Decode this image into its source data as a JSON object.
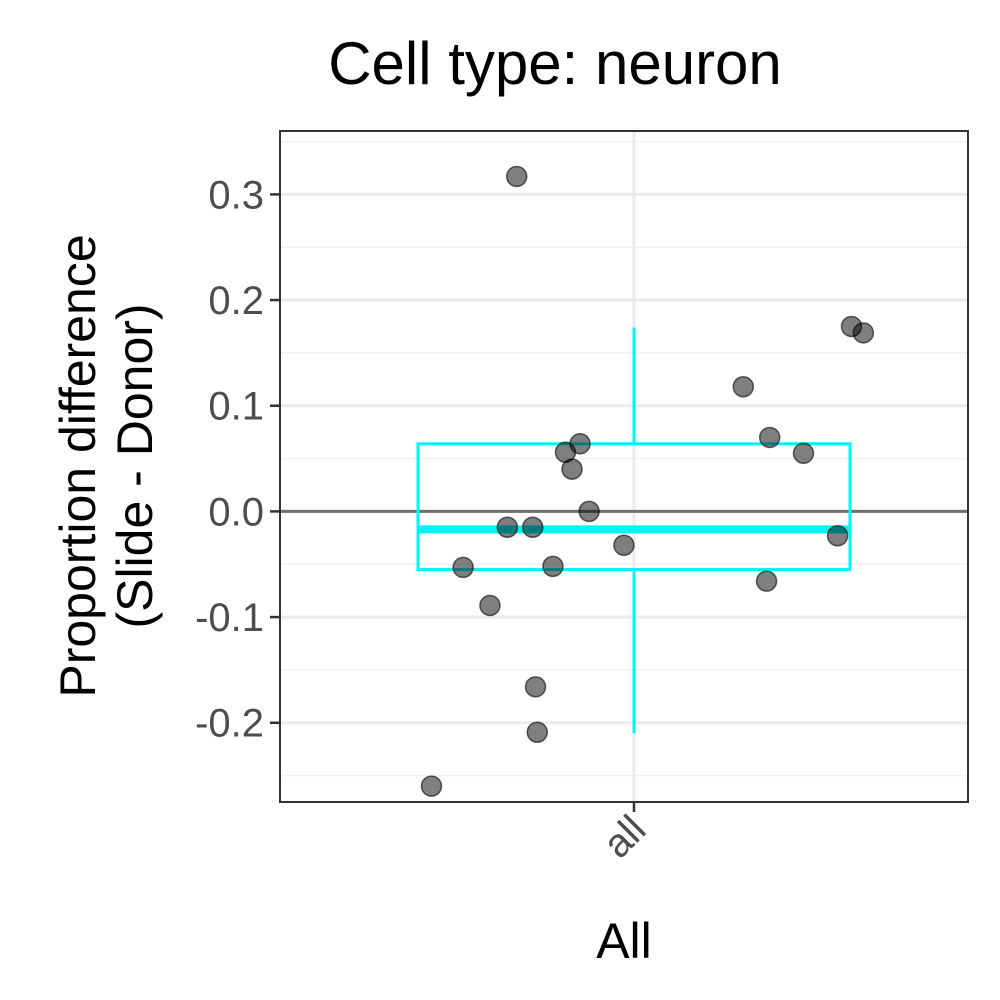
{
  "chart_data": {
    "type": "box",
    "title": "Cell type: neuron",
    "xlabel": "All",
    "ylabel_lines": [
      "Proportion difference",
      "(Slide - Donor)"
    ],
    "categories": [
      "all"
    ],
    "ylim": [
      -0.275,
      0.36
    ],
    "yticks": [
      -0.2,
      -0.1,
      0.0,
      0.1,
      0.2,
      0.3
    ],
    "ytick_labels": [
      "-0.2",
      "-0.1",
      "0.0",
      "0.1",
      "0.2",
      "0.3"
    ],
    "reference_line_y": 0.0,
    "grid": true,
    "box": {
      "category": "all",
      "lower_whisker": -0.21,
      "q1": -0.055,
      "median": -0.017,
      "q3": 0.064,
      "upper_whisker": 0.174,
      "color": "#00f5f5"
    },
    "points": [
      {
        "x_offset": -0.337,
        "y": 0.317
      },
      {
        "x_offset": -0.155,
        "y": 0.064
      },
      {
        "x_offset": -0.197,
        "y": 0.056
      },
      {
        "x_offset": -0.178,
        "y": 0.04
      },
      {
        "x_offset": -0.129,
        "y": 0.0
      },
      {
        "x_offset": -0.364,
        "y": -0.015
      },
      {
        "x_offset": -0.291,
        "y": -0.015
      },
      {
        "x_offset": -0.029,
        "y": -0.032
      },
      {
        "x_offset": -0.491,
        "y": -0.053
      },
      {
        "x_offset": -0.233,
        "y": -0.052
      },
      {
        "x_offset": -0.414,
        "y": -0.089
      },
      {
        "x_offset": -0.283,
        "y": -0.166
      },
      {
        "x_offset": -0.278,
        "y": -0.209
      },
      {
        "x_offset": -0.582,
        "y": -0.26
      },
      {
        "x_offset": 0.314,
        "y": 0.118
      },
      {
        "x_offset": 0.39,
        "y": 0.07
      },
      {
        "x_offset": 0.487,
        "y": 0.055
      },
      {
        "x_offset": 0.381,
        "y": -0.066
      },
      {
        "x_offset": 0.585,
        "y": -0.023
      },
      {
        "x_offset": 0.625,
        "y": 0.175
      },
      {
        "x_offset": 0.659,
        "y": 0.169
      }
    ],
    "point_color": "#000000",
    "point_opacity": 0.5,
    "reference_line_color": "#6e6e6e"
  }
}
